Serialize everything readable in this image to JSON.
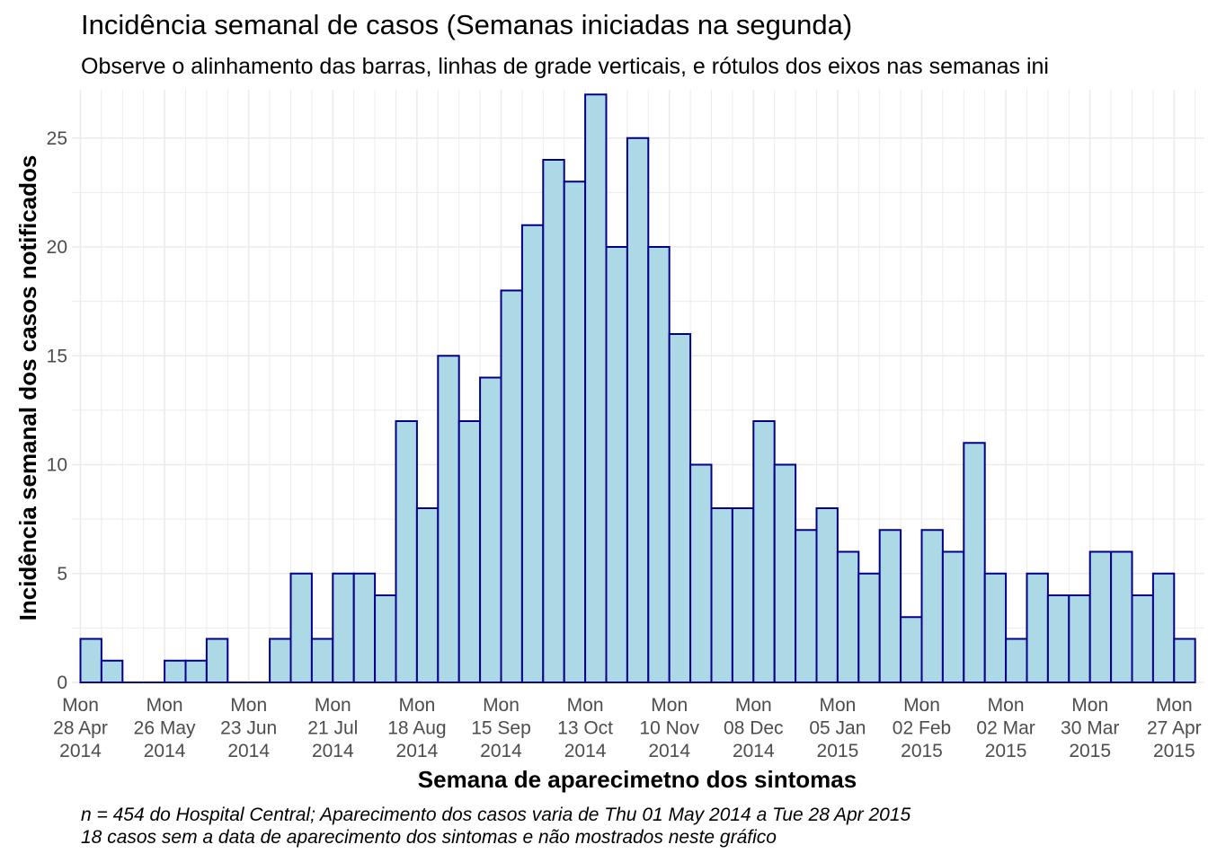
{
  "chart_data": {
    "type": "bar",
    "title": "Incidência semanal de casos (Semanas iniciadas na segunda)",
    "subtitle": "Observe o alinhamento das barras, linhas de grade verticais, e rótulos dos eixos nas semanas ini",
    "xlabel": "Semana de aparecimetno dos sintomas",
    "ylabel": "Incidência semanal dos casos notificados",
    "caption": [
      "n = 454 do Hospital Central; Aparecimento dos casos varia de Thu 01 May 2014 a Tue 28 Apr 2015",
      "18 casos sem a data de aparecimento dos sintomas e não mostrados neste gráfico"
    ],
    "x_start_week": "2014-04-28",
    "x_end_week": "2015-04-27",
    "bin": "week (Monday)",
    "values": [
      2,
      1,
      0,
      0,
      1,
      1,
      2,
      0,
      0,
      2,
      5,
      2,
      5,
      5,
      4,
      12,
      8,
      15,
      12,
      14,
      18,
      21,
      24,
      23,
      27,
      20,
      25,
      20,
      16,
      10,
      8,
      8,
      12,
      10,
      7,
      8,
      6,
      5,
      7,
      3,
      7,
      6,
      11,
      5,
      2,
      5,
      4,
      4,
      6,
      6,
      4,
      5,
      2
    ],
    "x_tick_labels": [
      [
        "Mon",
        "28 Apr",
        "2014"
      ],
      [
        "Mon",
        "26 May",
        "2014"
      ],
      [
        "Mon",
        "23 Jun",
        "2014"
      ],
      [
        "Mon",
        "21 Jul",
        "2014"
      ],
      [
        "Mon",
        "18 Aug",
        "2014"
      ],
      [
        "Mon",
        "15 Sep",
        "2014"
      ],
      [
        "Mon",
        "13 Oct",
        "2014"
      ],
      [
        "Mon",
        "10 Nov",
        "2014"
      ],
      [
        "Mon",
        "08 Dec",
        "2014"
      ],
      [
        "Mon",
        "05 Jan",
        "2015"
      ],
      [
        "Mon",
        "02 Feb",
        "2015"
      ],
      [
        "Mon",
        "02 Mar",
        "2015"
      ],
      [
        "Mon",
        "30 Mar",
        "2015"
      ],
      [
        "Mon",
        "27 Apr",
        "2015"
      ]
    ],
    "y_ticks": [
      0,
      5,
      10,
      15,
      20,
      25
    ],
    "ylim": [
      0,
      27
    ],
    "grid": true,
    "colors": {
      "bar_fill": "#add8e6",
      "bar_stroke": "#00008b",
      "grid": "#ebebeb"
    }
  }
}
